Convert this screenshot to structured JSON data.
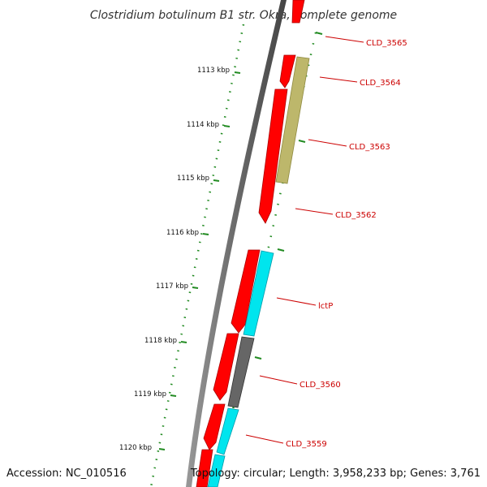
{
  "title": "Clostridium botulinum B1 str. Okra, complete genome",
  "footer": {
    "accession": "Accession: NC_010516",
    "summary": "Topology: circular; Length: 3,958,233 bp; Genes: 3,761"
  },
  "ticks": [
    {
      "label": "1113 kbp"
    },
    {
      "label": "1114 kbp"
    },
    {
      "label": "1115 kbp"
    },
    {
      "label": "1116 kbp"
    },
    {
      "label": "1117 kbp"
    },
    {
      "label": "1118 kbp"
    },
    {
      "label": "1119 kbp"
    },
    {
      "label": "1120 kbp"
    }
  ],
  "gene_labels": [
    {
      "name": "CLD_3565"
    },
    {
      "name": "CLD_3564"
    },
    {
      "name": "CLD_3563"
    },
    {
      "name": "CLD_3562"
    },
    {
      "name": "lctP"
    },
    {
      "name": "CLD_3560"
    },
    {
      "name": "CLD_3559"
    }
  ],
  "colors": {
    "backbone": "#777777",
    "cds": "#ff0000",
    "gene_khaki": "#bdb76b",
    "gene_cyan": "#00e5ee",
    "gene_grey": "#666666",
    "tick": "#228b22",
    "label": "#cc0000"
  }
}
